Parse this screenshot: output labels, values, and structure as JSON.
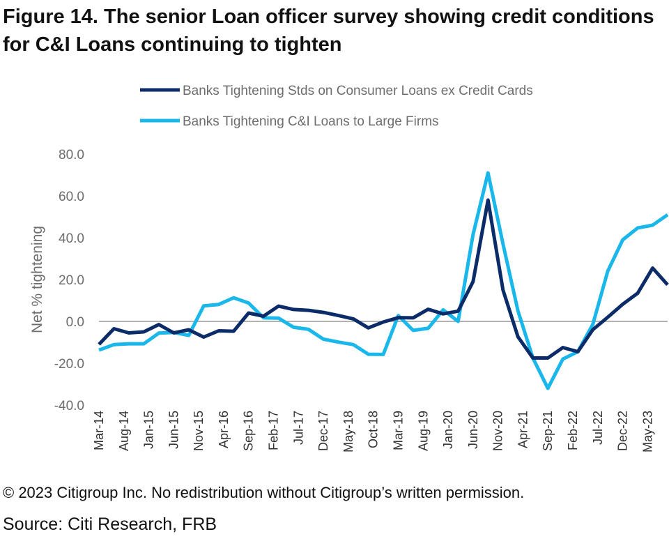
{
  "figure": {
    "title": "Figure 14. The senior Loan officer survey showing credit conditions for C&I Loans continuing to tighten",
    "copyright": "© 2023 Citigroup Inc. No redistribution without Citigroup’s written permission.",
    "source": "Source: Citi Research, FRB"
  },
  "colors": {
    "consumer": "#0c2c69",
    "ci": "#1ab7ea",
    "axis": "#999999",
    "text": "#6d6d6d"
  },
  "chart_data": {
    "type": "line",
    "title": "",
    "xlabel": "",
    "ylabel": "Net % tightening",
    "ylim": [
      -40,
      80
    ],
    "yticks": [
      "80.0",
      "60.0",
      "40.0",
      "20.0",
      "0.0",
      "-20.0",
      "-40.0"
    ],
    "grid": false,
    "legend_position": "top",
    "x": [
      "Mar-14",
      "Jun-14",
      "Sep-14",
      "Dec-14",
      "Mar-15",
      "Jun-15",
      "Sep-15",
      "Dec-15",
      "Mar-16",
      "Jun-16",
      "Sep-16",
      "Dec-16",
      "Mar-17",
      "Jun-17",
      "Sep-17",
      "Dec-17",
      "Mar-18",
      "Jun-18",
      "Sep-18",
      "Dec-18",
      "Mar-19",
      "Jun-19",
      "Sep-19",
      "Dec-19",
      "Mar-20",
      "Jun-20",
      "Sep-20",
      "Dec-20",
      "Mar-21",
      "Jun-21",
      "Sep-21",
      "Dec-21",
      "Mar-22",
      "Jun-22",
      "Sep-22",
      "Dec-22",
      "Mar-23",
      "Jun-23",
      "Sep-23"
    ],
    "xtick_labels": [
      "Mar-14",
      "Aug-14",
      "Jan-15",
      "Jun-15",
      "Nov-15",
      "Apr-16",
      "Sep-16",
      "Feb-17",
      "Jul-17",
      "Dec-17",
      "May-18",
      "Oct-18",
      "Mar-19",
      "Aug-19",
      "Jan-20",
      "Jun-20",
      "Nov-20",
      "Apr-21",
      "Sep-21",
      "Feb-22",
      "Jul-22",
      "Dec-22",
      "May-23"
    ],
    "series": [
      {
        "name": "Banks Tightening Stds on Consumer Loans ex Credit Cards",
        "values": [
          -11,
          -3.5,
          -5.5,
          -5,
          -1.5,
          -5.5,
          -4,
          -7.5,
          -4.5,
          -4.7,
          4,
          2.5,
          7.3,
          5.7,
          5.3,
          4.3,
          2.8,
          1.2,
          -3.1,
          -0.3,
          1.8,
          1.7,
          5.8,
          3.6,
          4.9,
          19,
          58,
          15,
          -7.4,
          -17.5,
          -17.5,
          -12.5,
          -14.5,
          -4,
          2,
          8.2,
          13.5,
          25.5,
          17.5
        ]
      },
      {
        "name": "Banks Tightening C&I Loans to Large Firms",
        "values": [
          -13.7,
          -11.1,
          -10.7,
          -10.7,
          -5.6,
          -5.3,
          -6.7,
          7.4,
          8.1,
          11.3,
          8.8,
          1.7,
          1.6,
          -2.8,
          -3.8,
          -8.5,
          -9.9,
          -11.1,
          -15.7,
          -15.8,
          2.8,
          -4.3,
          -3.3,
          5.5,
          0,
          41.5,
          71,
          37,
          5,
          -17.5,
          -32,
          -18,
          -14.5,
          -1.5,
          24,
          39,
          44.7,
          46,
          51
        ]
      }
    ]
  }
}
